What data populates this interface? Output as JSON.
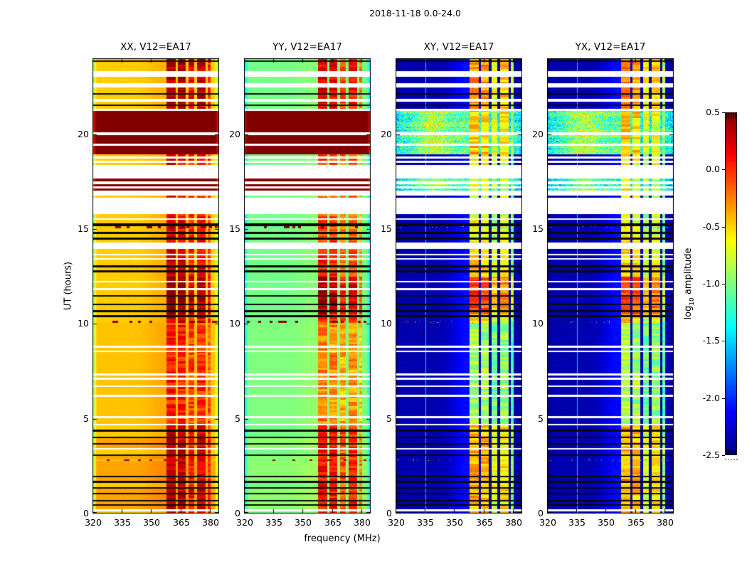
{
  "figure": {
    "title": "2018-11-18 0.0-24.0"
  },
  "chart_data": {
    "type": "heatmap",
    "title": "2018-11-18 0.0-24.0",
    "xlabel": "frequency (MHz)",
    "ylabel": "UT (hours)",
    "colorbar_label": "log10 amplitude",
    "colormap": "jet",
    "clim": [
      -2.5,
      0.5
    ],
    "x_range_mhz": [
      320,
      384.8
    ],
    "y_range_hours": [
      0,
      24
    ],
    "x_ticks": [
      320,
      335,
      350,
      365,
      380
    ],
    "y_ticks": [
      0,
      5,
      10,
      15,
      20
    ],
    "colorbar_ticks": [
      {
        "value": 0.5,
        "label": "0.5"
      },
      {
        "value": 0.0,
        "label": "0.0"
      },
      {
        "value": -0.5,
        "label": "-0.5"
      },
      {
        "value": -1.0,
        "label": "-1.0"
      },
      {
        "value": -1.5,
        "label": "-1.5"
      },
      {
        "value": -2.0,
        "label": "-2.0"
      },
      {
        "value": -2.5,
        "label": "-2.5"
      }
    ],
    "panels": [
      {
        "key": "XX",
        "title": "XX, V12=EA17",
        "style": "parallel",
        "base": -0.48,
        "org_boost": 0.12,
        "smooth_boost": 0.03,
        "rfi_offset": -0.35,
        "rfi_gain": 0.72,
        "edge_drop": 0.65,
        "glow_amp": 0.08
      },
      {
        "key": "YY",
        "title": "YY, V12=EA17",
        "style": "parallel",
        "base": -1.03,
        "org_boost": 0.07,
        "smooth_boost": 0.03,
        "rfi_offset": -0.78,
        "rfi_gain": 0.95,
        "edge_drop": 0.5,
        "glow_amp": 0.06
      },
      {
        "key": "XY",
        "title": "XY, V12=EA17",
        "style": "cross",
        "base": -2.36,
        "org_boost": 0,
        "smooth_boost": 0,
        "rfi_offset": -1.52,
        "rfi_gain": 1.18,
        "edge_drop": 0.22,
        "glow_amp": 0.26
      },
      {
        "key": "YX",
        "title": "YX, V12=EA17",
        "style": "cross",
        "base": -2.36,
        "org_boost": 0,
        "smooth_boost": 0,
        "rfi_offset": -1.52,
        "rfi_gain": 1.18,
        "edge_drop": 0.22,
        "glow_amp": 0.26
      }
    ],
    "cyan_line_mhz": 335.5,
    "glow_center_mhz": 356,
    "speckle_center_mhz": 339,
    "rfi_columns": [
      {
        "f0": 357.8,
        "f1": 362.6,
        "s": 1.0
      },
      {
        "f0": 363.6,
        "f1": 367.8,
        "s": 0.95
      },
      {
        "f0": 369.0,
        "f1": 372.2,
        "s": 0.72
      },
      {
        "f0": 373.6,
        "f1": 377.8,
        "s": 0.85
      },
      {
        "f0": 378.8,
        "f1": 380.6,
        "s": 0.55
      }
    ],
    "rfi_time_envelope": [
      [
        0,
        4.64,
        0.95
      ],
      [
        4.64,
        10.06,
        0.55
      ],
      [
        10.06,
        10.5,
        0.85
      ],
      [
        10.5,
        12.5,
        1.25
      ],
      [
        12.5,
        14.4,
        0.85
      ],
      [
        14.4,
        16.8,
        0.72
      ],
      [
        16.8,
        18.94,
        0.8
      ],
      [
        18.94,
        21.34,
        1.0
      ],
      [
        21.34,
        24.01,
        1.05
      ]
    ],
    "time_bands": [
      [
        0.0,
        0.1,
        "bg"
      ],
      [
        0.1,
        0.22,
        "white"
      ],
      [
        0.22,
        0.4,
        "org"
      ],
      [
        0.4,
        0.5,
        "black"
      ],
      [
        0.5,
        0.62,
        "org"
      ],
      [
        0.62,
        0.72,
        "black"
      ],
      [
        0.72,
        1.0,
        "org"
      ],
      [
        1.0,
        1.1,
        "black"
      ],
      [
        1.1,
        1.3,
        "org"
      ],
      [
        1.3,
        1.4,
        "black"
      ],
      [
        1.4,
        1.62,
        "bg"
      ],
      [
        1.62,
        1.72,
        "black"
      ],
      [
        1.72,
        1.9,
        "org"
      ],
      [
        1.9,
        2.0,
        "black"
      ],
      [
        2.0,
        2.78,
        "org"
      ],
      [
        2.78,
        2.86,
        "dotted"
      ],
      [
        2.86,
        3.02,
        "org"
      ],
      [
        3.02,
        3.12,
        "black"
      ],
      [
        3.12,
        3.36,
        "bg"
      ],
      [
        3.36,
        3.46,
        "white"
      ],
      [
        3.46,
        3.62,
        "org"
      ],
      [
        3.62,
        3.72,
        "black"
      ],
      [
        3.72,
        3.96,
        "org"
      ],
      [
        3.96,
        4.06,
        "black"
      ],
      [
        4.06,
        4.32,
        "bg"
      ],
      [
        4.32,
        4.42,
        "black"
      ],
      [
        4.42,
        4.64,
        "bg"
      ],
      [
        4.64,
        4.74,
        "white"
      ],
      [
        4.74,
        5.04,
        "smooth"
      ],
      [
        5.04,
        5.14,
        "white"
      ],
      [
        5.14,
        6.16,
        "smooth"
      ],
      [
        6.16,
        6.26,
        "white"
      ],
      [
        6.26,
        6.66,
        "smooth"
      ],
      [
        6.66,
        6.76,
        "white"
      ],
      [
        6.76,
        7.06,
        "smooth"
      ],
      [
        7.06,
        7.16,
        "white"
      ],
      [
        7.16,
        7.28,
        "smooth"
      ],
      [
        7.28,
        7.38,
        "white"
      ],
      [
        7.38,
        8.5,
        "smooth"
      ],
      [
        8.5,
        8.6,
        "white"
      ],
      [
        8.6,
        8.74,
        "smooth"
      ],
      [
        8.74,
        8.84,
        "white"
      ],
      [
        8.84,
        10.06,
        "smooth"
      ],
      [
        10.06,
        10.18,
        "dotted"
      ],
      [
        10.18,
        10.34,
        "bg"
      ],
      [
        10.34,
        10.48,
        "black"
      ],
      [
        10.48,
        10.62,
        "bg"
      ],
      [
        10.62,
        10.72,
        "black"
      ],
      [
        10.72,
        10.98,
        "bg"
      ],
      [
        10.98,
        11.08,
        "black"
      ],
      [
        11.08,
        11.42,
        "bg"
      ],
      [
        11.42,
        11.52,
        "black"
      ],
      [
        11.52,
        11.78,
        "bg"
      ],
      [
        11.78,
        11.88,
        "white"
      ],
      [
        11.88,
        12.18,
        "bg"
      ],
      [
        12.18,
        12.28,
        "white"
      ],
      [
        12.28,
        12.72,
        "bg"
      ],
      [
        12.72,
        12.82,
        "black"
      ],
      [
        12.82,
        12.98,
        "bg"
      ],
      [
        12.98,
        13.08,
        "black"
      ],
      [
        13.08,
        13.4,
        "bg"
      ],
      [
        13.4,
        13.48,
        "white"
      ],
      [
        13.48,
        13.62,
        "bg"
      ],
      [
        13.62,
        13.7,
        "white"
      ],
      [
        13.7,
        13.96,
        "bg"
      ],
      [
        13.96,
        14.3,
        "white"
      ],
      [
        14.3,
        14.44,
        "bg"
      ],
      [
        14.44,
        14.54,
        "black"
      ],
      [
        14.54,
        14.74,
        "bg"
      ],
      [
        14.74,
        14.84,
        "black"
      ],
      [
        14.84,
        15.04,
        "bg"
      ],
      [
        15.04,
        15.16,
        "dotted"
      ],
      [
        15.16,
        15.3,
        "black"
      ],
      [
        15.3,
        15.48,
        "bg"
      ],
      [
        15.48,
        15.58,
        "white"
      ],
      [
        15.58,
        15.8,
        "bg"
      ],
      [
        15.8,
        16.64,
        "white"
      ],
      [
        16.64,
        16.76,
        "bg"
      ],
      [
        16.76,
        17.02,
        "white"
      ],
      [
        17.02,
        17.12,
        "redline"
      ],
      [
        17.12,
        17.25,
        "white"
      ],
      [
        17.25,
        17.38,
        "redline"
      ],
      [
        17.38,
        17.5,
        "white"
      ],
      [
        17.5,
        17.65,
        "redline"
      ],
      [
        17.65,
        18.36,
        "white"
      ],
      [
        18.36,
        18.5,
        "bg"
      ],
      [
        18.5,
        18.6,
        "white"
      ],
      [
        18.6,
        18.72,
        "bg"
      ],
      [
        18.72,
        18.84,
        "white"
      ],
      [
        18.84,
        18.94,
        "bg"
      ],
      [
        18.94,
        19.4,
        "hot"
      ],
      [
        19.4,
        19.5,
        "white"
      ],
      [
        19.5,
        19.96,
        "hot"
      ],
      [
        19.96,
        20.1,
        "white"
      ],
      [
        20.1,
        21.24,
        "hot"
      ],
      [
        21.24,
        21.34,
        "white"
      ],
      [
        21.34,
        21.48,
        "bg"
      ],
      [
        21.48,
        21.58,
        "black"
      ],
      [
        21.58,
        21.72,
        "bg"
      ],
      [
        21.72,
        21.86,
        "white"
      ],
      [
        21.86,
        22.08,
        "bg"
      ],
      [
        22.08,
        22.18,
        "black"
      ],
      [
        22.18,
        22.48,
        "bg"
      ],
      [
        22.48,
        22.68,
        "white"
      ],
      [
        22.68,
        23.04,
        "bg"
      ],
      [
        23.04,
        23.32,
        "white"
      ],
      [
        23.32,
        23.8,
        "bg"
      ],
      [
        23.8,
        23.9,
        "black"
      ],
      [
        23.9,
        24.0,
        "bg"
      ]
    ]
  }
}
